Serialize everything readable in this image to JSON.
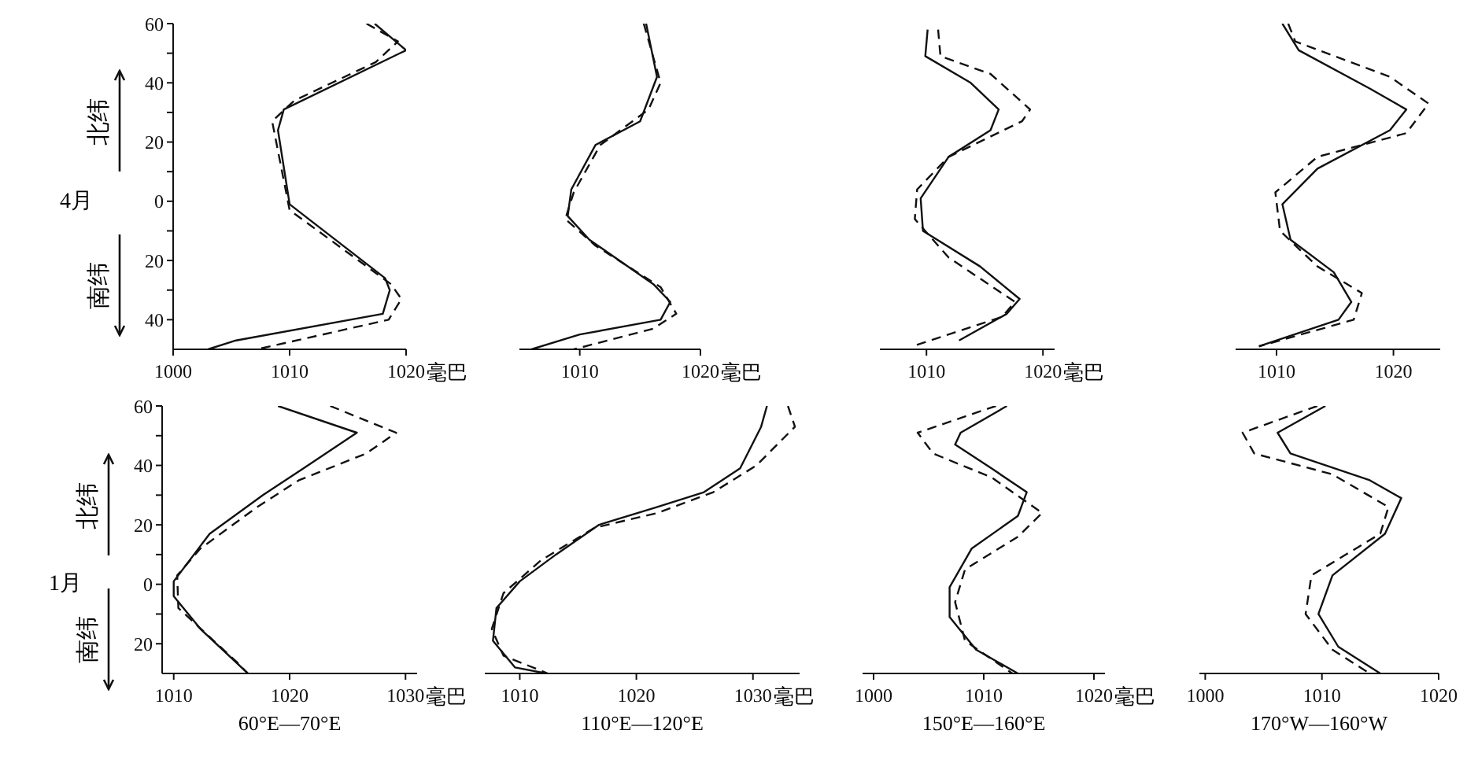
{
  "chart_data": [
    {
      "type": "line",
      "ylabel": "4月",
      "annotations": [
        "北纬",
        "南纬"
      ],
      "xlabel": "毫巴",
      "xlim": [
        1000,
        1020
      ],
      "xticks": [
        1000,
        1010,
        1020
      ],
      "ylim": [
        -50,
        60
      ],
      "yticks": [
        60,
        {
          "value": 50,
          "label": null
        },
        40,
        {
          "value": 30,
          "label": null
        },
        20,
        {
          "value": 10,
          "label": null
        },
        0,
        {
          "value": -10,
          "label": null
        },
        {
          "value": -20,
          "label": "20"
        },
        {
          "value": -30,
          "label": null
        },
        {
          "value": -40,
          "label": "40"
        }
      ],
      "marker": "none",
      "series": [
        {
          "color": "#111111",
          "line_style": "solid",
          "x": [
            1017.3,
            1020,
            1009.5,
            1009,
            1010,
            1018.2,
            1018.6,
            1018,
            1005.4,
            1003
          ],
          "values": [
            60,
            51,
            31,
            24,
            -1,
            -26,
            -30,
            -38,
            -47,
            -50
          ]
        },
        {
          "color": "#111111",
          "line_style": "dashed",
          "x": [
            1016.6,
            1019.3,
            1017.4,
            1010.4,
            1008.5,
            1009,
            1010,
            1018.7,
            1019.6,
            1018.5,
            1007.2
          ],
          "values": [
            60,
            54,
            47,
            34,
            27,
            17,
            -3,
            -28,
            -33,
            -40,
            -50
          ]
        }
      ]
    },
    {
      "type": "line",
      "xlabel": "毫巴",
      "xlim": [
        1005,
        1020
      ],
      "xticks": [
        1010,
        1020
      ],
      "ylim": [
        -50,
        60
      ],
      "tick_labels": "x",
      "marker": "none",
      "series": [
        {
          "color": "#111111",
          "line_style": "solid",
          "x": [
            1015.5,
            1016.4,
            1015,
            1011.3,
            1009.3,
            1009,
            1010.8,
            1016.1,
            1017.5,
            1016.7,
            1010,
            1006
          ],
          "values": [
            60,
            42,
            27,
            19,
            4,
            -5,
            -13,
            -28,
            -34,
            -40,
            -45,
            -50
          ]
        },
        {
          "color": "#111111",
          "line_style": "dashed",
          "x": [
            1015.3,
            1016.7,
            1015.7,
            1011.7,
            1009.5,
            1008.8,
            1011.3,
            1016.7,
            1018,
            1016.1,
            1009.5
          ],
          "values": [
            60,
            40,
            31,
            19,
            3,
            -6,
            -15,
            -29,
            -38,
            -43,
            -50
          ]
        }
      ]
    },
    {
      "type": "line",
      "xlabel": "毫巴",
      "xlim": [
        1006,
        1021
      ],
      "xticks": [
        1010,
        1020
      ],
      "ylim": [
        -50,
        60
      ],
      "tick_labels": "x",
      "marker": "none",
      "series": [
        {
          "color": "#111111",
          "line_style": "solid",
          "x": [
            1010.1,
            1009.9,
            1013.8,
            1016.2,
            1015.5,
            1011.9,
            1009.5,
            1009.7,
            1014.6,
            1018,
            1016.9,
            1012.8
          ],
          "values": [
            58,
            49,
            40,
            31,
            24,
            15,
            1,
            -10,
            -22,
            -33,
            -38,
            -47
          ]
        },
        {
          "color": "#111111",
          "line_style": "dashed",
          "x": [
            1011,
            1011.2,
            1015.5,
            1018.9,
            1018.2,
            1011.9,
            1009.2,
            1009,
            1011.9,
            1017.6,
            1016.5,
            1008.8
          ],
          "values": [
            58,
            49,
            43,
            31,
            27,
            15,
            4,
            -6,
            -19,
            -34,
            -39,
            -49
          ]
        }
      ]
    },
    {
      "type": "line",
      "xlim": [
        1006.5,
        1024
      ],
      "xticks": [
        1010,
        1020
      ],
      "ylim": [
        -50,
        60
      ],
      "tick_labels": "x",
      "marker": "none",
      "series": [
        {
          "color": "#111111",
          "line_style": "solid",
          "x": [
            1010.5,
            1011.9,
            1018,
            1021.1,
            1019.7,
            1013.5,
            1010.5,
            1011.2,
            1014.9,
            1016.4,
            1015.3,
            1008.5
          ],
          "values": [
            60,
            51,
            38,
            31,
            24,
            11,
            -1,
            -13,
            -24,
            -34,
            -40,
            -49
          ]
        },
        {
          "color": "#111111",
          "line_style": "dashed",
          "x": [
            1011,
            1011.6,
            1019.7,
            1023,
            1021.1,
            1013.5,
            1009.9,
            1010.3,
            1013.5,
            1017.3,
            1016.6,
            1008.5
          ],
          "values": [
            60,
            54,
            42,
            33,
            23,
            15,
            3,
            -10,
            -22,
            -31,
            -40,
            -49
          ]
        }
      ]
    },
    {
      "type": "line",
      "ylabel": "1月",
      "annotations": [
        "北纬",
        "南纬",
        "60°E—70°E"
      ],
      "xlabel": "毫巴",
      "xlim": [
        1009,
        1031
      ],
      "xticks": [
        1010,
        1020,
        1030
      ],
      "ylim": [
        -30,
        60
      ],
      "yticks": [
        60,
        {
          "value": 50,
          "label": null
        },
        40,
        {
          "value": 30,
          "label": null
        },
        20,
        {
          "value": 10,
          "label": null
        },
        0,
        {
          "value": -10,
          "label": null
        },
        {
          "value": -20,
          "label": "20"
        }
      ],
      "marker": "none",
      "series": [
        {
          "color": "#111111",
          "line_style": "solid",
          "x": [
            1019,
            1025.8,
            1021.2,
            1017.7,
            1013.1,
            1010,
            1010,
            1012.3,
            1016.4
          ],
          "values": [
            60,
            51,
            39,
            30,
            17,
            1,
            -4,
            -15,
            -30
          ]
        },
        {
          "color": "#111111",
          "line_style": "dashed",
          "x": [
            1023.5,
            1029.2,
            1026.6,
            1020.8,
            1017.2,
            1012.3,
            1010.3,
            1010.4,
            1015.4,
            1016.4
          ],
          "values": [
            60,
            51,
            44,
            35,
            26,
            12,
            3,
            -8,
            -26,
            -30
          ]
        }
      ]
    },
    {
      "type": "line",
      "annotations": [
        "110°E—120°E"
      ],
      "xlabel": "毫巴",
      "xlim": [
        1007,
        1034
      ],
      "xticks": [
        1010,
        1020,
        1030
      ],
      "ylim": [
        -30,
        60
      ],
      "tick_labels": "x",
      "marker": "none",
      "series": [
        {
          "color": "#111111",
          "line_style": "solid",
          "x": [
            1031.2,
            1030.7,
            1028.9,
            1025.8,
            1021.8,
            1016.8,
            1013.1,
            1010,
            1008,
            1007.7,
            1009.6,
            1012.3
          ],
          "values": [
            60,
            53,
            39,
            31,
            26,
            20,
            10,
            1,
            -8,
            -19,
            -28,
            -30
          ]
        },
        {
          "color": "#111111",
          "line_style": "dashed",
          "x": [
            1033,
            1033.6,
            1030.3,
            1026.6,
            1021.8,
            1016.4,
            1011.8,
            1008.6,
            1007.6,
            1008.6,
            1012.4
          ],
          "values": [
            60,
            53,
            40,
            31,
            24,
            19,
            8,
            -3,
            -15,
            -24,
            -30
          ]
        }
      ]
    },
    {
      "type": "line",
      "annotations": [
        "150°E—160°E"
      ],
      "xlabel": "毫巴",
      "xlim": [
        999,
        1021
      ],
      "xticks": [
        1000,
        1010,
        1020
      ],
      "ylim": [
        -30,
        60
      ],
      "tick_labels": "x",
      "marker": "none",
      "series": [
        {
          "color": "#111111",
          "line_style": "solid",
          "x": [
            1012.1,
            1007.9,
            1007.4,
            1010.7,
            1013.9,
            1013.1,
            1008.9,
            1006.9,
            1006.9,
            1009.3,
            1013.1
          ],
          "values": [
            60,
            51,
            47,
            39,
            31,
            23,
            12,
            -1,
            -11,
            -22,
            -30
          ]
        },
        {
          "color": "#111111",
          "line_style": "dashed",
          "x": [
            1011.1,
            1004,
            1005.4,
            1010.7,
            1015.3,
            1013.1,
            1008.3,
            1007.4,
            1008.3,
            1012.6
          ],
          "values": [
            60,
            51,
            44,
            36,
            24,
            16,
            5,
            -6,
            -19,
            -30
          ]
        }
      ]
    },
    {
      "type": "line",
      "annotations": [
        "170°W—160°W"
      ],
      "xlim": [
        999.5,
        1020
      ],
      "xticks": [
        1000,
        1010,
        1020
      ],
      "ylim": [
        -30,
        60
      ],
      "tick_labels": "x",
      "marker": "none",
      "series": [
        {
          "color": "#111111",
          "line_style": "solid",
          "x": [
            1010.3,
            1006.2,
            1007.3,
            1014.1,
            1016.8,
            1015.4,
            1010.9,
            1009.7,
            1011.4,
            1015
          ],
          "values": [
            60,
            51,
            44,
            35,
            29,
            17,
            3,
            -10,
            -21,
            -30
          ]
        },
        {
          "color": "#111111",
          "line_style": "dashed",
          "x": [
            1009.6,
            1003.2,
            1004.2,
            1010.9,
            1015.7,
            1015,
            1009.1,
            1008.6,
            1010.9,
            1014.1
          ],
          "values": [
            60,
            51,
            44,
            37,
            26,
            17,
            3,
            -10,
            -22,
            -30
          ]
        }
      ]
    }
  ]
}
